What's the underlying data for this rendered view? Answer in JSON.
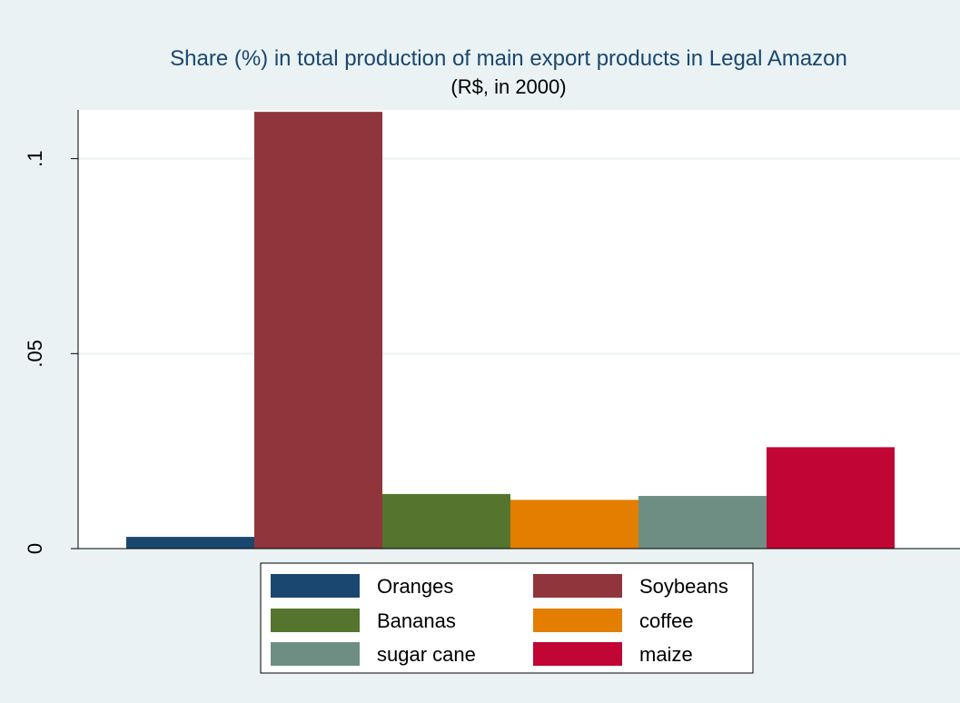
{
  "chart_data": {
    "type": "bar",
    "title": "Share (%) in total production of main export products in Legal Amazon",
    "subtitle": "(R$, in 2000)",
    "xlabel": "",
    "ylabel": "",
    "ylim": [
      0,
      0.1125
    ],
    "yticks": [
      0,
      0.05,
      0.1
    ],
    "ytick_labels": [
      "0",
      ".05",
      ".1"
    ],
    "grid": true,
    "legend_position": "bottom",
    "series": [
      {
        "name": "Oranges",
        "value": 0.003,
        "color": "#1a476f"
      },
      {
        "name": "Soybeans",
        "value": 0.112,
        "color": "#90353b"
      },
      {
        "name": "Bananas",
        "value": 0.014,
        "color": "#55752f"
      },
      {
        "name": "coffee",
        "value": 0.0125,
        "color": "#e37e00"
      },
      {
        "name": "sugar cane",
        "value": 0.0135,
        "color": "#6e8e84"
      },
      {
        "name": "maize",
        "value": 0.026,
        "color": "#c10534"
      }
    ]
  },
  "colors": {
    "outer_background": "#eaf2f3",
    "plot_background": "#ffffff",
    "title_color": "#1a476f",
    "gridline": "#eaf2f3",
    "axis": "#000000"
  }
}
